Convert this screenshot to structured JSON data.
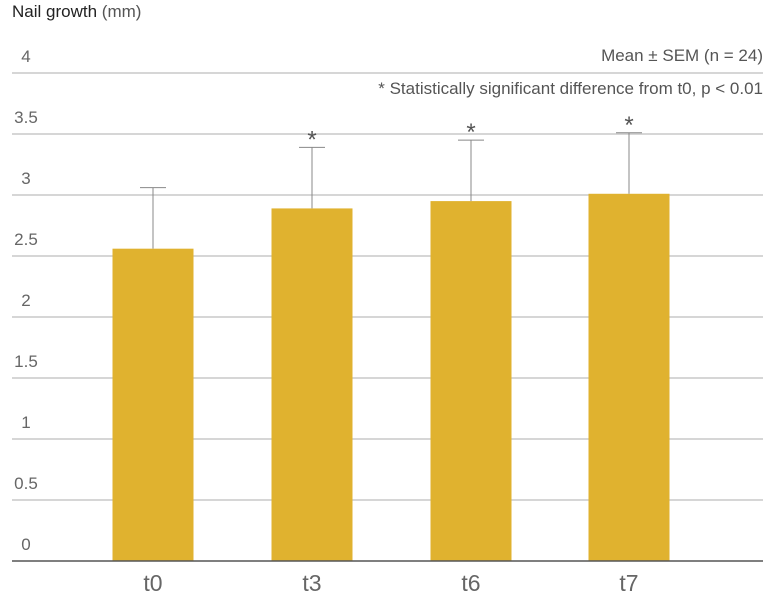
{
  "chart_data": {
    "type": "bar",
    "ylabel": "Nail growth",
    "ylabel_unit": "(mm)",
    "categories": [
      "t0",
      "t3",
      "t6",
      "t7"
    ],
    "values": [
      2.56,
      2.89,
      2.95,
      3.01
    ],
    "error_upper": [
      3.06,
      3.39,
      3.45,
      3.51
    ],
    "significance_marks": [
      "",
      "*",
      "*",
      "*"
    ],
    "ylim": [
      0,
      4
    ],
    "yticks": [
      "0",
      "0.5",
      "1",
      "1.5",
      "2",
      "2.5",
      "3",
      "3.5",
      "4"
    ],
    "grid": true,
    "annotations": {
      "mean_sem": "Mean ± SEM (n = 24)",
      "significance": "* Statistically significant difference from t0, p < 0.01"
    },
    "colors": {
      "bar": "#e0b22f",
      "grid": "#c8c8c8",
      "axis": "#555555",
      "error": "#888888",
      "text": "#666666"
    }
  }
}
